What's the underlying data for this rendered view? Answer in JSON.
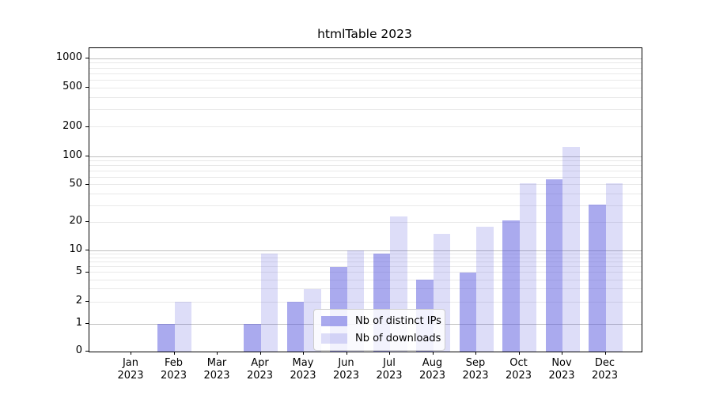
{
  "title": "htmlTable 2023",
  "colors": {
    "bar_base": "#5555dd",
    "series1_fill": "rgba(85,85,221,0.5)",
    "series2_fill": "rgba(85,85,221,0.2)",
    "grid_major": "#bfbfbf",
    "grid_minor": "#e9e9e9",
    "axis": "#000000"
  },
  "chart_data": {
    "type": "bar",
    "title": "htmlTable 2023",
    "categories": [
      "Jan",
      "Feb",
      "Mar",
      "Apr",
      "May",
      "Jun",
      "Jul",
      "Aug",
      "Sep",
      "Oct",
      "Nov",
      "Dec"
    ],
    "year_label": "2023",
    "series": [
      {
        "name": "Nb of distinct IPs",
        "color": "rgba(85,85,221,0.5)",
        "values": [
          0,
          1,
          0,
          1,
          2,
          6,
          9,
          4,
          5,
          21,
          57,
          31
        ]
      },
      {
        "name": "Nb of downloads",
        "color": "rgba(85,85,221,0.2)",
        "values": [
          0,
          2,
          0,
          9,
          3,
          10,
          23,
          15,
          18,
          52,
          125,
          52
        ]
      }
    ],
    "y_ticks": [
      "0",
      "1",
      "2",
      "5",
      "10",
      "20",
      "50",
      "100",
      "200",
      "500",
      "1000"
    ],
    "y_tick_values": [
      0,
      1,
      2,
      5,
      10,
      20,
      50,
      100,
      200,
      500,
      1000
    ],
    "yscale": "log-with-zero-baseline",
    "ylim": [
      0,
      1300
    ],
    "xlabel": "",
    "ylabel": "",
    "grid": true,
    "legend_position": "lower-center"
  }
}
